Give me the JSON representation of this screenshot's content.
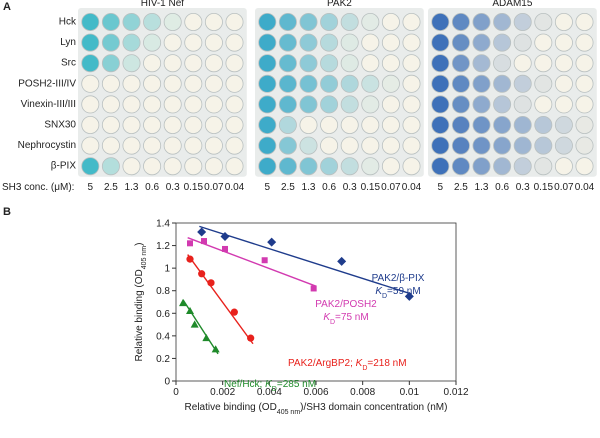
{
  "panel_a": {
    "letter": "A",
    "rows": [
      "Hck",
      "Lyn",
      "Src",
      "POSH2-III/IV",
      "Vinexin-III/III",
      "SNX30",
      "Nephrocystin",
      "β-PIX"
    ],
    "conc_label": "SH3 conc. (μM):",
    "plates": [
      {
        "title": "HIV-1 Nef",
        "color": "#2fb4c4",
        "rows_signal": [
          4,
          3,
          2,
          0,
          0,
          0,
          0,
          1
        ],
        "concentrations": [
          5,
          2.5,
          1.3,
          0.6,
          0.3,
          0.15,
          0.07,
          0.04
        ]
      },
      {
        "title": "PAK2",
        "color": "#2aa3c6",
        "rows_signal": [
          5,
          4,
          4,
          6,
          5,
          1,
          2,
          5
        ],
        "concentrations": [
          5,
          2.5,
          1.3,
          0.6,
          0.3,
          0.15,
          0.07,
          0.04
        ]
      },
      {
        "title": "ADAM15",
        "color": "#2a63b4",
        "rows_signal": [
          5,
          4,
          3,
          5,
          4,
          7,
          7,
          5
        ],
        "concentrations": [
          5,
          2.5,
          1.3,
          0.6,
          0.3,
          0.15,
          0.07,
          0.04
        ]
      }
    ]
  },
  "panel_b": {
    "letter": "B"
  },
  "chart_data": {
    "type": "scatter",
    "x_label": {
      "text": "Relative binding (OD",
      "sub": "405 nm",
      "tail": ")/SH3 domain concentration (nM)"
    },
    "y_label": {
      "text": "Relative binding (OD",
      "sub": "405 nm",
      "tail": ")"
    },
    "xlim": [
      0,
      0.012
    ],
    "xticks": [
      0,
      0.002,
      0.004,
      0.006,
      0.008,
      0.01,
      0.012
    ],
    "ylim": [
      0,
      1.4
    ],
    "yticks": [
      0,
      0.2,
      0.4,
      0.6,
      0.8,
      1,
      1.2,
      1.4
    ],
    "series": [
      {
        "color": "#1f3c8c",
        "marker": "diamond",
        "x": [
          0.0011,
          0.0021,
          0.0041,
          0.0071,
          0.01
        ],
        "values": [
          1.32,
          1.28,
          1.23,
          1.06,
          0.75
        ],
        "fit_x": [
          0.001,
          0.0101
        ],
        "fit_y": [
          1.37,
          0.77
        ],
        "annotation": [
          [
            {
              "t": "PAK2/β-PIX"
            }
          ],
          [
            {
              "t": "K",
              "style": "italic"
            },
            {
              "t": "D",
              "style": "sub"
            },
            {
              "t": "=59 nM"
            }
          ]
        ]
      },
      {
        "color": "#d23ab0",
        "marker": "square",
        "x": [
          0.0006,
          0.0012,
          0.0021,
          0.0038,
          0.0059
        ],
        "values": [
          1.22,
          1.24,
          1.17,
          1.07,
          0.82
        ],
        "fit_x": [
          0.0005,
          0.006
        ],
        "fit_y": [
          1.27,
          0.84
        ],
        "annotation": [
          [
            {
              "t": "PAK2/POSH2"
            }
          ],
          [
            {
              "t": "K",
              "style": "italic"
            },
            {
              "t": "D",
              "style": "sub"
            },
            {
              "t": "=75 nM"
            }
          ]
        ]
      },
      {
        "color": "#e8211c",
        "marker": "circle",
        "x": [
          0.0006,
          0.0011,
          0.0015,
          0.0025,
          0.0032
        ],
        "values": [
          1.08,
          0.95,
          0.87,
          0.61,
          0.38
        ],
        "fit_x": [
          0.0005,
          0.0033
        ],
        "fit_y": [
          1.12,
          0.33
        ],
        "annotation": [
          [
            {
              "t": "PAK2/ArgBP2; "
            },
            {
              "t": "K",
              "style": "italic"
            },
            {
              "t": "D",
              "style": "sub"
            },
            {
              "t": "=218 nM"
            }
          ]
        ]
      },
      {
        "color": "#1f8a2a",
        "marker": "triangle",
        "x": [
          0.0003,
          0.0006,
          0.0008,
          0.0013,
          0.0017
        ],
        "values": [
          0.69,
          0.62,
          0.5,
          0.38,
          0.28
        ],
        "fit_x": [
          0.0003,
          0.0018
        ],
        "fit_y": [
          0.72,
          0.24
        ],
        "annotation": [
          [
            {
              "t": "Nef/Hck; "
            },
            {
              "t": "K",
              "style": "italic"
            },
            {
              "t": "D",
              "style": "sub"
            },
            {
              "t": "=285 nM"
            }
          ]
        ]
      }
    ]
  }
}
